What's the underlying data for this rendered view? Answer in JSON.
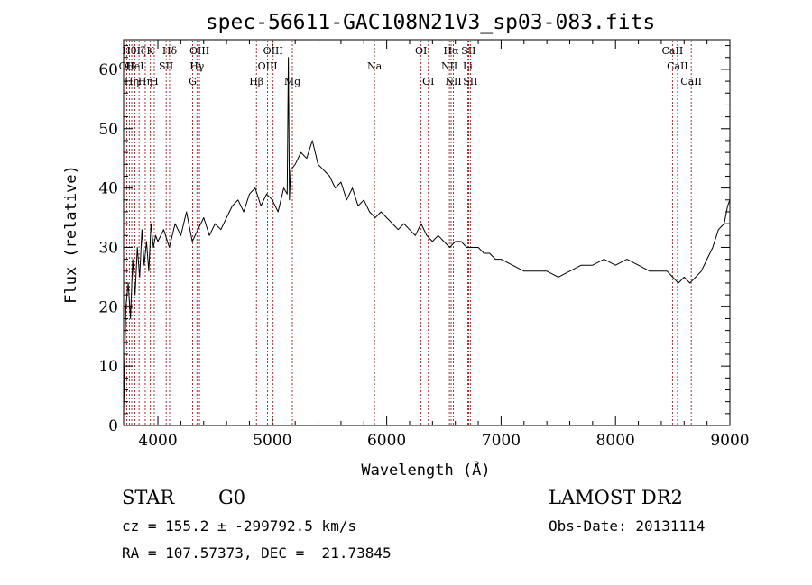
{
  "chart_data": {
    "type": "line",
    "title": "spec-56611-GAC108N21V3_sp03-083.fits",
    "xlabel": "Wavelength (Å)",
    "ylabel": "Flux (relative)",
    "xlim": [
      3700,
      9000
    ],
    "ylim": [
      0,
      65
    ],
    "xticks": [
      4000,
      5000,
      6000,
      7000,
      8000,
      9000
    ],
    "yticks": [
      0,
      10,
      20,
      30,
      40,
      50,
      60
    ],
    "line_color": "#000000",
    "marker_color": "#8b0000",
    "series": [
      {
        "x": [
          3700,
          3720,
          3740,
          3760,
          3780,
          3800,
          3820,
          3840,
          3860,
          3880,
          3900,
          3920,
          3940,
          3960,
          3980,
          4000,
          4050,
          4100,
          4150,
          4200,
          4250,
          4300,
          4350,
          4400,
          4450,
          4500,
          4550,
          4600,
          4650,
          4700,
          4750,
          4800,
          4850,
          4900,
          4950,
          5000,
          5050,
          5100,
          5130,
          5140,
          5150,
          5160,
          5200,
          5250,
          5300,
          5350,
          5400,
          5450,
          5500,
          5550,
          5600,
          5650,
          5700,
          5750,
          5800,
          5850,
          5900,
          5950,
          6000,
          6050,
          6100,
          6150,
          6200,
          6250,
          6300,
          6350,
          6400,
          6450,
          6500,
          6550,
          6600,
          6650,
          6700,
          6750,
          6800,
          6850,
          6900,
          6950,
          7000,
          7100,
          7200,
          7300,
          7400,
          7500,
          7600,
          7700,
          7800,
          7900,
          8000,
          8100,
          8200,
          8300,
          8400,
          8450,
          8500,
          8550,
          8600,
          8650,
          8700,
          8750,
          8800,
          8850,
          8900,
          8950,
          8980,
          9000
        ],
        "y": [
          2,
          20,
          24,
          18,
          28,
          22,
          30,
          25,
          33,
          27,
          31,
          26,
          34,
          30,
          32,
          31,
          33,
          30,
          34,
          32,
          36,
          31,
          33,
          35,
          32,
          34,
          33,
          35,
          37,
          38,
          36,
          39,
          40,
          37,
          39,
          38,
          36,
          40,
          39,
          62,
          38,
          43,
          44,
          46,
          45,
          48,
          44,
          43,
          42,
          40,
          41,
          38,
          40,
          37,
          38,
          36,
          35,
          36,
          35,
          34,
          33,
          34,
          33,
          32,
          34,
          32,
          31,
          32,
          31,
          30,
          31,
          31,
          30,
          30,
          30,
          29,
          29,
          28,
          28,
          27,
          26,
          26,
          26,
          25,
          26,
          27,
          27,
          28,
          27,
          28,
          27,
          26,
          26,
          26,
          25,
          24,
          25,
          24,
          25,
          26,
          28,
          30,
          33,
          34,
          37,
          38
        ]
      }
    ],
    "line_markers": [
      {
        "x": 3727,
        "label": "OII",
        "row": 1
      },
      {
        "x": 3750,
        "label": "Hθ",
        "row": 0
      },
      {
        "x": 3771,
        "label": "Hη",
        "row": 2
      },
      {
        "x": 3798,
        "label": "HeI",
        "row": 1
      },
      {
        "x": 3835,
        "label": "Hζ",
        "row": 0
      },
      {
        "x": 3889,
        "label": "Hη",
        "row": 2
      },
      {
        "x": 3934,
        "label": "K",
        "row": 0
      },
      {
        "x": 3968,
        "label": "H",
        "row": 2
      },
      {
        "x": 4072,
        "label": "SII",
        "row": 1
      },
      {
        "x": 4102,
        "label": "Hδ",
        "row": 0
      },
      {
        "x": 4304,
        "label": "G",
        "row": 2
      },
      {
        "x": 4341,
        "label": "Hγ",
        "row": 1
      },
      {
        "x": 4363,
        "label": "OIII",
        "row": 0
      },
      {
        "x": 4861,
        "label": "Hβ",
        "row": 2
      },
      {
        "x": 4959,
        "label": "OIII",
        "row": 1
      },
      {
        "x": 5007,
        "label": "OIII",
        "row": 0
      },
      {
        "x": 5175,
        "label": "Mg",
        "row": 2
      },
      {
        "x": 5893,
        "label": "Na",
        "row": 1
      },
      {
        "x": 6300,
        "label": "OI",
        "row": 0
      },
      {
        "x": 6364,
        "label": "OI",
        "row": 2
      },
      {
        "x": 6548,
        "label": "NII",
        "row": 1
      },
      {
        "x": 6563,
        "label": "Hα",
        "row": 0
      },
      {
        "x": 6583,
        "label": "NII",
        "row": 2
      },
      {
        "x": 6708,
        "label": "Li",
        "row": 1
      },
      {
        "x": 6716,
        "label": "SII",
        "row": 0
      },
      {
        "x": 6731,
        "label": "SII",
        "row": 2
      },
      {
        "x": 8498,
        "label": "CaII",
        "row": 0
      },
      {
        "x": 8542,
        "label": "CaII",
        "row": 1
      },
      {
        "x": 8662,
        "label": "CaII",
        "row": 2
      }
    ]
  },
  "info": {
    "class_label": "STAR",
    "subclass": "G0",
    "survey": "LAMOST DR2",
    "cz": "cz = 155.2 ± -299792.5 km/s",
    "obs_date": "Obs-Date: 20131114",
    "coords": "RA = 107.57373, DEC =  21.73845"
  }
}
